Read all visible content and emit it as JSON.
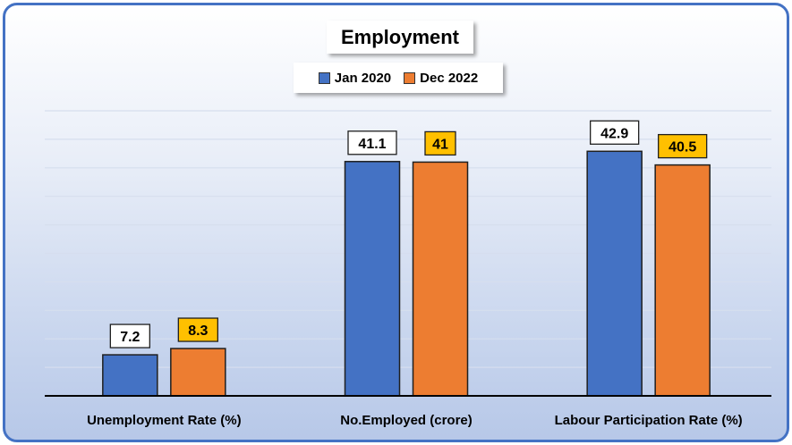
{
  "chart_data": {
    "type": "bar",
    "title": "Employment",
    "categories": [
      "Unemployment Rate (%)",
      "No.Employed (crore)",
      "Labour Participation Rate (%)"
    ],
    "series": [
      {
        "name": "Jan 2020",
        "values": [
          7.2,
          41.1,
          42.9
        ],
        "labels": [
          "7.2",
          "41.1",
          "42.9"
        ]
      },
      {
        "name": "Dec 2022",
        "values": [
          8.3,
          41,
          40.5
        ],
        "labels": [
          "8.3",
          "41",
          "40.5"
        ]
      }
    ],
    "ylim": [
      0,
      50
    ],
    "grid": true,
    "legend_position": "top-center"
  },
  "colors": {
    "series_1": "#4472c4",
    "series_2": "#ed7d31",
    "label_bg_1": "#ffffff",
    "label_bg_2": "#ffc000"
  }
}
